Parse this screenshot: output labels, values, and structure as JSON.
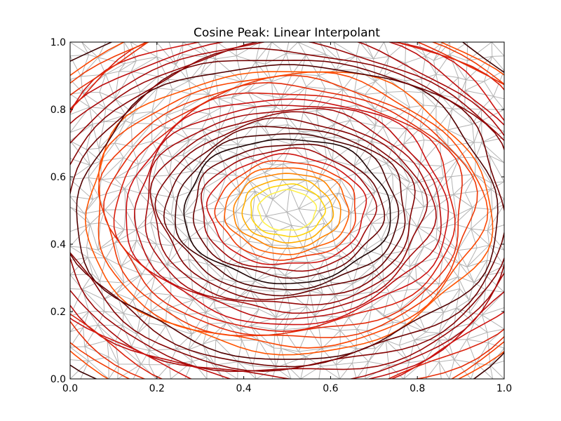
{
  "chart_data": {
    "type": "contour",
    "title": "Cosine Peak: Linear Interpolant",
    "xlabel": "",
    "ylabel": "",
    "xlim": [
      0.0,
      1.0
    ],
    "ylim": [
      0.0,
      1.0
    ],
    "x_ticks": [
      0.0,
      0.2,
      0.4,
      0.6,
      0.8,
      1.0
    ],
    "y_ticks": [
      0.0,
      0.2,
      0.4,
      0.6,
      0.8,
      1.0
    ],
    "x_tick_labels": [
      "0.0",
      "0.2",
      "0.4",
      "0.6",
      "0.8",
      "1.0"
    ],
    "y_tick_labels": [
      "0.0",
      "0.2",
      "0.4",
      "0.6",
      "0.8",
      "1.0"
    ],
    "grid": false,
    "background_mesh": {
      "kind": "delaunay-triangulation",
      "color": "#b3b3b3",
      "domain": [
        [
          0.0,
          1.0
        ],
        [
          0.0,
          1.0
        ]
      ]
    },
    "function": "cosine peak centered at (0.5, 0.5)",
    "peak_center": [
      0.5,
      0.5
    ],
    "contour_colormap": [
      "#000000",
      "#7a0000",
      "#cc1010",
      "#ff4a00",
      "#ff8c00",
      "#ffd000",
      "#ffff70"
    ],
    "contour_radii": [
      0.065,
      0.0837,
      0.1023,
      0.121,
      0.1397,
      0.1583,
      0.177,
      0.1957,
      0.2143,
      0.233,
      0.2517,
      0.2703,
      0.289,
      0.3077,
      0.3263,
      0.345,
      0.3637,
      0.3823,
      0.401,
      0.4197,
      0.4383,
      0.457,
      0.4757,
      0.4943,
      0.513,
      0.5317,
      0.5503,
      0.569,
      0.5877,
      0.6063,
      0.625,
      0.6437,
      0.6623,
      0.681
    ]
  }
}
